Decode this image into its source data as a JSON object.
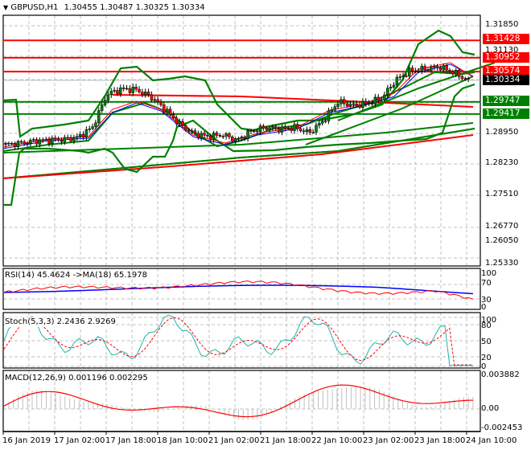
{
  "header": {
    "symbol": "GBPUSD,H1",
    "ohlc": "1.30455 1.30487 1.30325 1.30334",
    "menu_icon": "triangle-down-icon"
  },
  "colors": {
    "bull_candle": "#008000",
    "bear_candle": "#ff0000",
    "support_line": "#008000",
    "resistance_line": "#ff0000",
    "bollinger": "#008000",
    "rsi": "#ff0000",
    "rsi_ma": "#0000ff",
    "stoch_main": "#20b2aa",
    "stoch_signal": "#ff0000",
    "macd_hist": "#c0c0c0",
    "macd_signal": "#ff0000",
    "grid": "#c0c0c0"
  },
  "price_axis": {
    "ticks": [
      "1.31850",
      "1.31130",
      "1.28950",
      "1.28230",
      "1.27510",
      "1.26770",
      "1.26050",
      "1.25330"
    ],
    "tags": [
      {
        "value": "1.31428",
        "color": "#ff0000"
      },
      {
        "value": "1.30952",
        "color": "#ff0000"
      },
      {
        "value": "1.30574",
        "color": "#ff0000"
      },
      {
        "value": "1.30334",
        "color": "#000000"
      },
      {
        "value": "1.29747",
        "color": "#008000"
      },
      {
        "value": "1.29417",
        "color": "#008000"
      }
    ]
  },
  "rsi_panel": {
    "title": "RSI(14) 45.4624  ->MA(18) 65.1978",
    "ticks": [
      "100",
      "70",
      "30",
      "0"
    ]
  },
  "stoch_panel": {
    "title": "Stoch(5,3,3) 2.2436 2.9269",
    "ticks": [
      "100",
      "80",
      "50",
      "20",
      "0"
    ]
  },
  "macd_panel": {
    "title": "MACD(12,26,9) 0.001196 0.002295",
    "ticks": [
      "0.003882",
      "0.00",
      "-0.002453"
    ]
  },
  "time_axis": {
    "labels": [
      "16 Jan 2019",
      "17 Jan 02:00",
      "17 Jan 18:00",
      "18 Jan 10:00",
      "21 Jan 02:00",
      "21 Jan 18:00",
      "22 Jan 10:00",
      "23 Jan 02:00",
      "23 Jan 18:00",
      "24 Jan 10:00"
    ]
  },
  "chart_data": {
    "type": "candlestick",
    "title": "GBPUSD,H1",
    "ohlc_last": {
      "open": 1.30455,
      "high": 1.30487,
      "low": 1.30325,
      "close": 1.30334
    },
    "ylim": [
      1.2533,
      1.3215
    ],
    "x_labels": [
      "16 Jan 2019",
      "17 Jan 02:00",
      "17 Jan 18:00",
      "18 Jan 10:00",
      "21 Jan 02:00",
      "21 Jan 18:00",
      "22 Jan 10:00",
      "23 Jan 02:00",
      "23 Jan 18:00",
      "24 Jan 10:00"
    ],
    "horizontal_levels": {
      "resistance": [
        1.31428,
        1.30952,
        1.30574
      ],
      "support": [
        1.29747,
        1.29417
      ],
      "current_price": 1.30334
    },
    "approx_close_path": [
      1.2858,
      1.2862,
      1.2868,
      1.287,
      1.2872,
      1.2878,
      1.2905,
      1.2995,
      1.301,
      1.3008,
      1.299,
      1.2955,
      1.2915,
      1.2888,
      1.288,
      1.2885,
      1.287,
      1.2895,
      1.2905,
      1.29,
      1.2905,
      1.289,
      1.2925,
      1.2975,
      1.2965,
      1.297,
      1.2985,
      1.3035,
      1.306,
      1.3065,
      1.307,
      1.3055,
      1.3033
    ],
    "indicators": {
      "rsi": {
        "period": 14,
        "value": 45.4624,
        "ma_period": 18,
        "ma_value": 65.1978,
        "levels": [
          70,
          30
        ]
      },
      "stochastic": {
        "params": "5,3,3",
        "main": 2.2436,
        "signal": 2.9269,
        "levels": [
          80,
          50,
          20
        ]
      },
      "macd": {
        "params": "12,26,9",
        "main": 0.001196,
        "signal": 0.002295,
        "ylim": [
          -0.002453,
          0.003882
        ]
      }
    },
    "grid": true
  }
}
